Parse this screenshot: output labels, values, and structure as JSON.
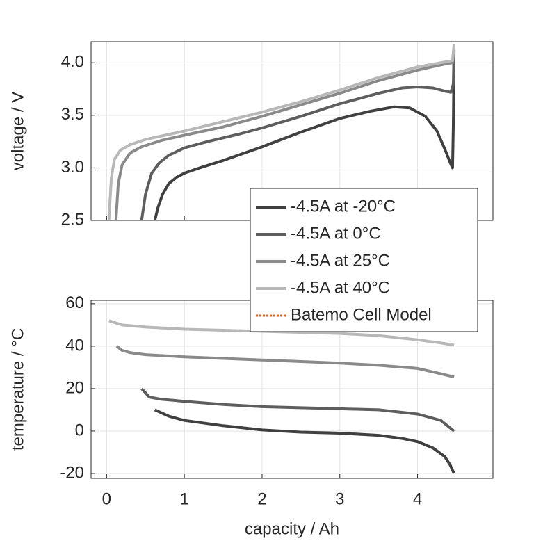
{
  "chart_data": [
    {
      "type": "line",
      "ylabel": "voltage / V",
      "xlim": [
        -0.2,
        4.97
      ],
      "ylim": [
        2.5,
        4.2
      ],
      "xticks": [
        0,
        1,
        2,
        3,
        4
      ],
      "xtick_labels": false,
      "yticks": [
        2.5,
        {
          "value": 3,
          "label": "3.0"
        },
        3.5,
        {
          "value": 4,
          "label": "4.0"
        }
      ],
      "grid": true,
      "legend": {
        "location": "lower right",
        "extra": [
          {
            "name": "Batemo Cell Model",
            "color": "#e8601c",
            "style": "dotted"
          }
        ]
      },
      "series": [
        {
          "name": "-4.5A at -20°C",
          "color": "#404040",
          "x": [
            0.62,
            0.66,
            0.72,
            0.8,
            0.9,
            1.0,
            1.2,
            1.5,
            2.0,
            2.5,
            3.0,
            3.4,
            3.7,
            3.9,
            4.1,
            4.25,
            4.35,
            4.42,
            4.45,
            4.46,
            4.47
          ],
          "values": [
            2.5,
            2.62,
            2.75,
            2.85,
            2.91,
            2.95,
            3.0,
            3.07,
            3.2,
            3.34,
            3.47,
            3.54,
            3.58,
            3.57,
            3.49,
            3.35,
            3.18,
            3.05,
            3.0,
            3.4,
            4.12
          ]
        },
        {
          "name": "-4.5A at 0°C",
          "color": "#5e5e5e",
          "x": [
            0.45,
            0.5,
            0.58,
            0.68,
            0.8,
            1.0,
            1.3,
            1.7,
            2.0,
            2.5,
            3.0,
            3.5,
            3.8,
            4.0,
            4.2,
            4.35,
            4.43,
            4.46,
            4.47
          ],
          "values": [
            2.5,
            2.75,
            2.95,
            3.05,
            3.12,
            3.19,
            3.25,
            3.32,
            3.38,
            3.49,
            3.61,
            3.71,
            3.76,
            3.77,
            3.76,
            3.73,
            3.72,
            3.8,
            4.14
          ]
        },
        {
          "name": "-4.5A at 25°C",
          "color": "#8a8a8a",
          "x": [
            0.12,
            0.15,
            0.2,
            0.3,
            0.45,
            0.7,
            1.0,
            1.5,
            2.0,
            2.5,
            3.0,
            3.5,
            4.0,
            4.3,
            4.45,
            4.47
          ],
          "values": [
            2.5,
            2.85,
            3.03,
            3.14,
            3.2,
            3.26,
            3.31,
            3.39,
            3.49,
            3.6,
            3.71,
            3.83,
            3.93,
            3.98,
            4.0,
            4.16
          ]
        },
        {
          "name": "-4.5A at 40°C",
          "color": "#b8b8b8",
          "x": [
            0.03,
            0.06,
            0.1,
            0.18,
            0.3,
            0.5,
            1.0,
            1.5,
            2.0,
            2.5,
            3.0,
            3.5,
            4.0,
            4.3,
            4.45,
            4.47
          ],
          "values": [
            2.5,
            2.9,
            3.08,
            3.17,
            3.22,
            3.27,
            3.35,
            3.44,
            3.53,
            3.63,
            3.74,
            3.86,
            3.96,
            4.0,
            4.02,
            4.18
          ]
        }
      ]
    },
    {
      "type": "line",
      "ylabel": "temperature / °C",
      "xlabel": "capacity / Ah",
      "xlim": [
        -0.2,
        4.97
      ],
      "ylim": [
        -22.3,
        61.6
      ],
      "xticks": [
        0,
        1,
        2,
        3,
        4
      ],
      "xtick_labels": true,
      "yticks": [
        -20,
        0,
        20,
        40,
        60
      ],
      "grid": true,
      "series": [
        {
          "color": "#404040",
          "x": [
            0.62,
            0.8,
            1.0,
            1.5,
            2.0,
            2.5,
            3.0,
            3.5,
            3.8,
            4.0,
            4.2,
            4.35,
            4.42,
            4.47
          ],
          "values": [
            10,
            7,
            5,
            2.5,
            0.5,
            -0.5,
            -1,
            -2,
            -3.5,
            -5,
            -8,
            -12,
            -16,
            -20
          ]
        },
        {
          "color": "#5e5e5e",
          "x": [
            0.45,
            0.55,
            0.7,
            1.0,
            1.5,
            2.0,
            2.5,
            3.0,
            3.5,
            4.0,
            4.3,
            4.47
          ],
          "values": [
            20,
            16,
            15,
            14,
            12.5,
            11.5,
            11,
            10.5,
            10,
            8,
            5,
            0
          ]
        },
        {
          "color": "#8a8a8a",
          "x": [
            0.13,
            0.2,
            0.3,
            0.5,
            1.0,
            2.0,
            3.0,
            3.5,
            4.0,
            4.3,
            4.47
          ],
          "values": [
            40,
            38,
            37,
            36,
            35,
            33.5,
            32,
            31,
            29.5,
            27,
            25.5
          ]
        },
        {
          "color": "#b8b8b8",
          "x": [
            0.03,
            0.2,
            0.5,
            1.0,
            2.0,
            3.0,
            3.5,
            4.0,
            4.3,
            4.47
          ],
          "values": [
            52,
            50,
            49,
            48,
            47,
            46,
            45,
            43,
            41.5,
            40.5
          ]
        }
      ]
    }
  ]
}
